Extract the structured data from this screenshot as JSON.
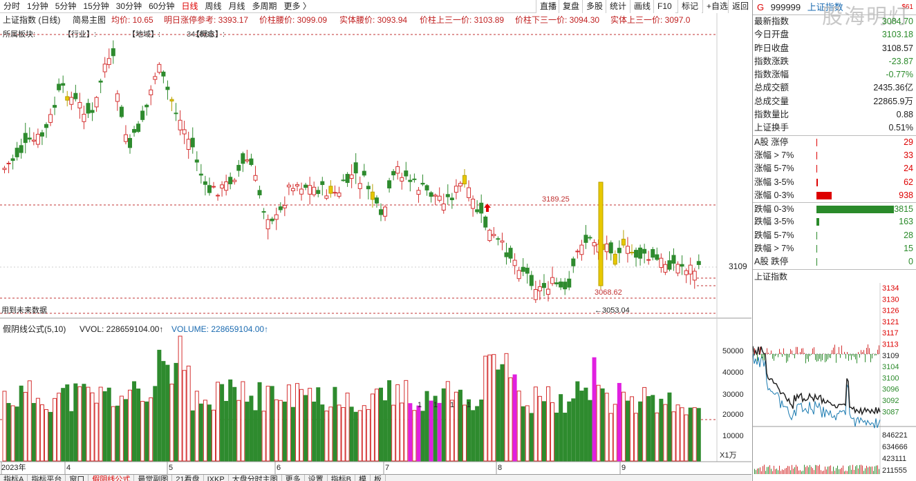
{
  "toolbar": {
    "period_tabs": [
      "分时",
      "1分钟",
      "5分钟",
      "15分钟",
      "30分钟",
      "60分钟",
      "日线",
      "周线",
      "月线",
      "多周期",
      "更多 〉"
    ],
    "active_period": "日线",
    "right_buttons": [
      "直播",
      "复盘",
      "多股",
      "统计",
      "画线",
      "F10",
      "标记",
      "+自选",
      "返回"
    ]
  },
  "chart": {
    "title_line": "上证指数 (日线)",
    "main_formula": "简易主图",
    "indicators": [
      {
        "label": "均价: 10.65"
      },
      {
        "label": "明日涨停参考: 3393.17"
      },
      {
        "label": "价柱腰价: 3099.09"
      },
      {
        "label": "实体腰价: 3093.94"
      },
      {
        "label": "价柱上三一价: 3103.89"
      },
      {
        "label": "价柱下三一价: 3094.30"
      },
      {
        "label": "实体上三一价: 3097.0"
      }
    ],
    "sector_line": "所属板块:",
    "sector_industry": "【行业】:",
    "sector_region": "【地域】:",
    "sector_other": "【概念】:",
    "level_high_label": "3418.95",
    "level_3189_label": "3189.25",
    "level_3068_label": "3068.62",
    "level_3053_label": "←3053.04",
    "price_axis_label": "3109",
    "future_note": "用到未来数据",
    "vol_formula": "假阴线公式(5,10)",
    "vvol_label": "VVOL: 228659104.00↑",
    "volume_label": "VOLUME: 228659104.00↑",
    "vol_axis": [
      "50000",
      "40000",
      "30000",
      "20000",
      "10000"
    ],
    "vol_unit": "X1万",
    "x_labels": [
      "2023年",
      "4",
      "5",
      "6",
      "7",
      "8",
      "9"
    ],
    "marker_ones": [
      "1",
      "1",
      "1",
      "1"
    ]
  },
  "quote": {
    "code": "999999",
    "name": "上证指数",
    "flag": "G",
    "sig": "$61",
    "watermark": "股海明灯",
    "stats": [
      {
        "label": "最新指数",
        "value": "3084.70",
        "color": "#2a8a2a"
      },
      {
        "label": "今日开盘",
        "value": "3103.18",
        "color": "#2a8a2a"
      },
      {
        "label": "昨日收盘",
        "value": "3108.57",
        "color": "#222"
      },
      {
        "label": "指数涨跌",
        "value": "-23.87",
        "color": "#2a8a2a"
      },
      {
        "label": "指数涨幅",
        "value": "-0.77%",
        "color": "#2a8a2a"
      },
      {
        "label": "总成交额",
        "value": "2435.36亿",
        "color": "#222"
      },
      {
        "label": "总成交量",
        "value": "22865.9万",
        "color": "#222"
      },
      {
        "label": "指数量比",
        "value": "0.88",
        "color": "#222"
      },
      {
        "label": "上证换手",
        "value": "0.51%",
        "color": "#222"
      }
    ],
    "breadth": [
      {
        "label": "A股 涨停",
        "value": "29",
        "color": "#d00",
        "bar": 0.01
      },
      {
        "label": "涨幅 > 7%",
        "value": "33",
        "color": "#d00",
        "bar": 0.01
      },
      {
        "label": "涨幅 5-7%",
        "value": "24",
        "color": "#d00",
        "bar": 0.01
      },
      {
        "label": "涨幅 3-5%",
        "value": "62",
        "color": "#d00",
        "bar": 0.02
      },
      {
        "label": "涨幅 0-3%",
        "value": "938",
        "color": "#d00",
        "bar": 0.2
      },
      {
        "label": "跌幅 0-3%",
        "value": "3815",
        "color": "#2a8a2a",
        "bar": 1.0
      },
      {
        "label": "跌幅 3-5%",
        "value": "163",
        "color": "#2a8a2a",
        "bar": 0.04
      },
      {
        "label": "跌幅 5-7%",
        "value": "28",
        "color": "#2a8a2a",
        "bar": 0.01
      },
      {
        "label": "跌幅 > 7%",
        "value": "15",
        "color": "#2a8a2a",
        "bar": 0.01
      },
      {
        "label": "A股 跌停",
        "value": "0",
        "color": "#2a8a2a",
        "bar": 0.0
      }
    ],
    "mini_title": "上证指数",
    "mini_price_axis": [
      "3134",
      "3130",
      "3126",
      "3121",
      "3117",
      "3113",
      "3109",
      "3104",
      "3100",
      "3096",
      "3092",
      "3087"
    ],
    "mini_vol_axis": [
      "846221",
      "634666",
      "423111",
      "211555"
    ]
  },
  "bottom_tabs": [
    "指标A",
    "指标平台",
    "窗口",
    "假阴线公式",
    "最觉副图",
    "21看盘",
    "IXKP",
    "大盘分时主图",
    "更多",
    "设置",
    "指标B",
    "模",
    "板"
  ],
  "bottom_active": "假阴线公式",
  "colors": {
    "up": "#d43030",
    "down": "#2e8b2e",
    "yellow": "#e8c800",
    "magenta": "#e020e0",
    "level": "#c03030"
  }
}
